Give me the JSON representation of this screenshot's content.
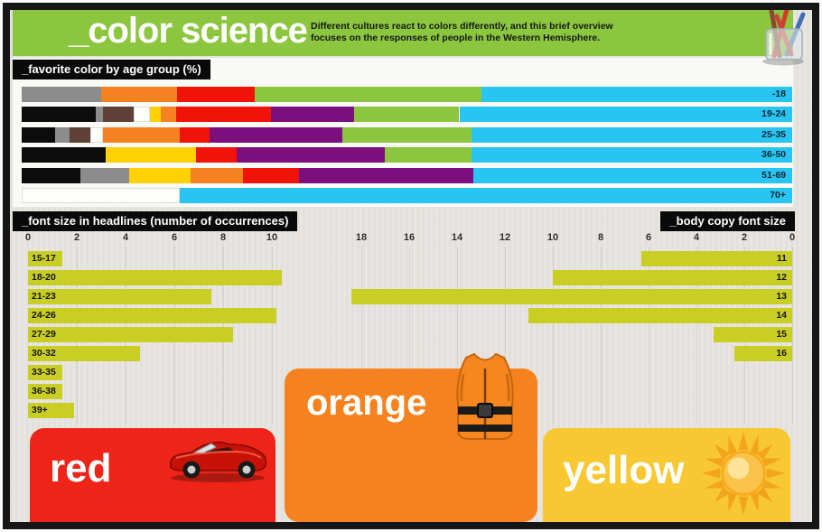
{
  "header": {
    "title": "_color science",
    "subtitle_lines": [
      "Different cultures react to colors differently, and this brief overview",
      "focuses on the responses of people in the Western Hemisphere."
    ],
    "bg_color": "#8cc63e"
  },
  "palette": {
    "black": "#0c0c0c",
    "gray": "#8c8c8c",
    "brown": "#5e4037",
    "white": "#fdfdfb",
    "yellow": "#fdd104",
    "orange": "#f58220",
    "red": "#f01408",
    "purple": "#7c0f7e",
    "green": "#8cc63e",
    "cyan": "#29c5f2",
    "olive_bar": "#c9ce24"
  },
  "chart_data": [
    {
      "type": "bar",
      "title": "_favorite color by age group (%)",
      "orientation": "horizontal",
      "stacked": true,
      "grid": false,
      "legend": "none",
      "xlim": [
        0,
        100
      ],
      "categories": [
        "-18",
        "19-24",
        "25-35",
        "36-50",
        "51-69",
        "70+"
      ],
      "series": [
        {
          "name": "black",
          "values": [
            0,
            9.6,
            4.3,
            10.9,
            7.6,
            0
          ]
        },
        {
          "name": "gray",
          "values": [
            10.3,
            1.0,
            1.9,
            0,
            6.4,
            0
          ]
        },
        {
          "name": "brown",
          "values": [
            0,
            3.9,
            2.7,
            0,
            0,
            0
          ]
        },
        {
          "name": "white",
          "values": [
            0,
            2.2,
            1.6,
            0,
            0,
            20.5
          ]
        },
        {
          "name": "yellow",
          "values": [
            0,
            1.3,
            0,
            11.7,
            7.9,
            0
          ]
        },
        {
          "name": "orange",
          "values": [
            9.9,
            2.0,
            10.0,
            0,
            6.8,
            0
          ]
        },
        {
          "name": "red",
          "values": [
            10.1,
            12.3,
            3.9,
            5.3,
            7.3,
            0
          ]
        },
        {
          "name": "purple",
          "values": [
            0,
            10.9,
            17.2,
            19.2,
            22.6,
            0
          ]
        },
        {
          "name": "green",
          "values": [
            29.4,
            13.6,
            16.8,
            11.3,
            0,
            0
          ]
        },
        {
          "name": "cyan",
          "values": [
            40.3,
            43.2,
            41.6,
            41.6,
            41.4,
            79.5
          ]
        }
      ]
    },
    {
      "type": "bar",
      "title": "_font size in headlines (number of occurrences)",
      "orientation": "horizontal",
      "grid": true,
      "xlim": [
        0,
        12
      ],
      "x_ticks": [
        "0",
        "2",
        "4",
        "6",
        "8",
        "10"
      ],
      "categories": [
        "15-17",
        "18-20",
        "21-23",
        "24-26",
        "27-29",
        "30-32",
        "33-35",
        "36-38",
        "39+"
      ],
      "values": [
        1.4,
        10.4,
        7.5,
        10.2,
        8.4,
        4.6,
        1.4,
        1.4,
        1.9
      ]
    },
    {
      "type": "bar",
      "title": "_body copy font size",
      "orientation": "horizontal",
      "direction": "right-to-left",
      "grid": true,
      "xlim": [
        0,
        18
      ],
      "x_ticks": [
        "18",
        "16",
        "14",
        "12",
        "10",
        "8",
        "6",
        "4",
        "2",
        "0"
      ],
      "categories": [
        "11",
        "12",
        "13",
        "14",
        "15",
        "16"
      ],
      "values": [
        6.3,
        10,
        18.4,
        11,
        3.3,
        2.4
      ]
    }
  ],
  "section_labels": {
    "favorite_color": "_favorite color by age group (%)",
    "headlines": "_font size in headlines (number of occurrences)",
    "body_copy": "_body copy font size"
  },
  "cards": [
    {
      "label": "red",
      "color": "#ee2418",
      "icon": "car-icon"
    },
    {
      "label": "orange",
      "color": "#f5821f",
      "icon": "life-vest-icon"
    },
    {
      "label": "yellow",
      "color": "#f8c832",
      "icon": "sun-icon"
    }
  ]
}
